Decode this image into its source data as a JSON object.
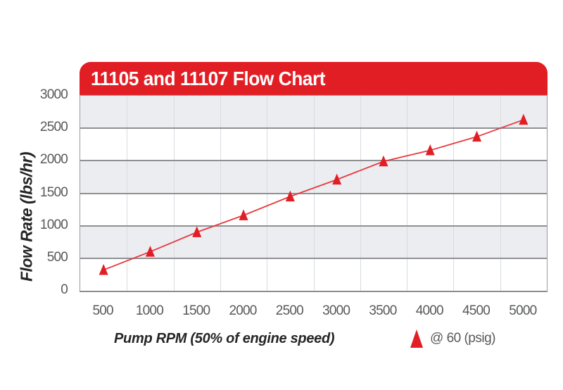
{
  "page": {
    "background": "#ffffff"
  },
  "colors": {
    "header_red": "#e21e25",
    "series_red": "#e8393f",
    "marker_red": "#e21e25",
    "band_gray": "#ebedf1",
    "gridline_gray": "#8f9092",
    "vertical_gridline": "#d9dbe0",
    "tick_text": "#58595b",
    "axis_title_text": "#252527",
    "title_text": "#ffffff"
  },
  "chart_data": {
    "type": "line",
    "title": "11105 and 11107 Flow Chart",
    "xlabel": "Pump RPM (50% of engine speed)",
    "ylabel": "Flow Rate (lbs/hr)",
    "categories": [
      500,
      1000,
      1500,
      2000,
      2500,
      3000,
      3500,
      4000,
      4500,
      5000
    ],
    "series": [
      {
        "name": "@ 60 (psig)",
        "marker": "triangle",
        "color": "#e8393f",
        "marker_color": "#e21e25",
        "values": [
          320,
          600,
          900,
          1160,
          1450,
          1710,
          1990,
          2160,
          2370,
          2630
        ]
      }
    ],
    "ylim": [
      0,
      3000
    ],
    "yticks": [
      0,
      500,
      1000,
      1500,
      2000,
      2500,
      3000
    ],
    "grid": {
      "horizontal": true,
      "vertical": true,
      "alternating_bands": true,
      "band_color": "#ebedf1"
    },
    "legend": {
      "label": "@ 60 (psig)",
      "position": "bottom-right"
    }
  }
}
